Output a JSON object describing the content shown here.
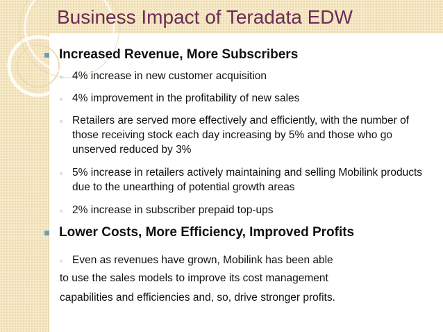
{
  "slide": {
    "title": "Business Impact of Teradata EDW",
    "sections": [
      {
        "heading": "Increased Revenue, More Subscribers",
        "bullets": [
          "4% increase in new customer acquisition",
          "4% improvement in the profitability of new sales",
          "Retailers are served more effectively and efficiently, with the number of those receiving stock each day increasing by 5% and those who go unserved reduced by 3%",
          "5% increase in retailers actively maintaining and selling Mobilink products due to the unearthing of potential growth areas",
          "2% increase in subscriber prepaid top-ups"
        ]
      },
      {
        "heading": "Lower Costs, More Efficiency, Improved Profits",
        "bullet": "Even as revenues have grown, Mobilink has been able",
        "continuation": [
          "to use the sales models to improve its cost management",
          "capabilities and efficiencies and, so, drive stronger profits."
        ]
      }
    ]
  },
  "colors": {
    "title": "#6b2c54",
    "bullet": "#6d9fb0",
    "band": "#f6e9c8"
  },
  "icons": {
    "level1_bullet": "square-bullet-icon",
    "level2_bullet": "ring-bullet-icon"
  }
}
